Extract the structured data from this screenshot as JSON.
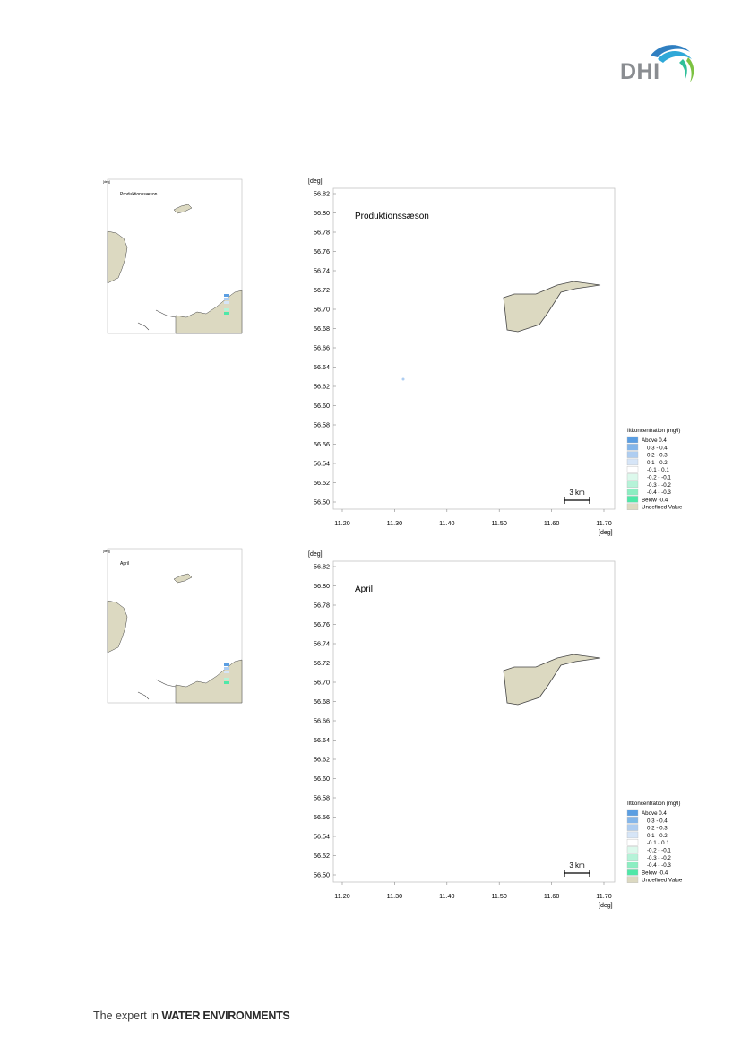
{
  "header": {
    "logo_text": "DHI"
  },
  "footer": {
    "tagline_prefix": "The expert in",
    "tagline_bold": "WATER ENVIRONMENTS"
  },
  "colors": {
    "land": "#dcd9c1",
    "coast": "#444444",
    "above": "#5b9ee2",
    "below": "#4fe8a8",
    "frame": "#bdbdbd"
  },
  "figures": [
    {
      "title": "Produktionssæson",
      "axis_unit": "[deg]",
      "y_ticks": [
        "56.82",
        "56.80",
        "56.78",
        "56.76",
        "56.74",
        "56.72",
        "56.70",
        "56.68",
        "56.66",
        "56.64",
        "56.62",
        "56.60",
        "56.58",
        "56.56",
        "56.54",
        "56.52",
        "56.50"
      ],
      "x_ticks": [
        "11.20",
        "11.30",
        "11.40",
        "11.50",
        "11.60",
        "11.70"
      ],
      "scale_bar": "3 km",
      "legend": {
        "title": "Iltkoncentration (mg/l)",
        "items": [
          {
            "label": "Above  0.4",
            "color": "#5b9ee2"
          },
          {
            "label": "0.3 -  0.4",
            "color": "#84b6ea"
          },
          {
            "label": "0.2 -  0.3",
            "color": "#aecdf1"
          },
          {
            "label": "0.1 -  0.2",
            "color": "#d6e5f7"
          },
          {
            "label": "-0.1 -  0.1",
            "color": "#ffffff"
          },
          {
            "label": "-0.2 - -0.1",
            "color": "#dcf9ec"
          },
          {
            "label": "-0.3 - -0.2",
            "color": "#b5f3d8"
          },
          {
            "label": "-0.4 - -0.3",
            "color": "#8ceec2"
          },
          {
            "label": "Below -0.4",
            "color": "#4fe8a8"
          },
          {
            "label": "Undefined Value",
            "color": "#dcd9c1"
          }
        ]
      }
    },
    {
      "title": "April",
      "axis_unit": "[deg]",
      "y_ticks": [
        "56.82",
        "56.80",
        "56.78",
        "56.76",
        "56.74",
        "56.72",
        "56.70",
        "56.68",
        "56.66",
        "56.64",
        "56.62",
        "56.60",
        "56.58",
        "56.56",
        "56.54",
        "56.52",
        "56.50"
      ],
      "x_ticks": [
        "11.20",
        "11.30",
        "11.40",
        "11.50",
        "11.60",
        "11.70"
      ],
      "scale_bar": "3 km",
      "legend": {
        "title": "Iltkoncentration (mg/l)",
        "items": [
          {
            "label": "Above  0.4",
            "color": "#5b9ee2"
          },
          {
            "label": "0.3 -  0.4",
            "color": "#84b6ea"
          },
          {
            "label": "0.2 -  0.3",
            "color": "#aecdf1"
          },
          {
            "label": "0.1 -  0.2",
            "color": "#d6e5f7"
          },
          {
            "label": "-0.1 -  0.1",
            "color": "#ffffff"
          },
          {
            "label": "-0.2 - -0.1",
            "color": "#dcf9ec"
          },
          {
            "label": "-0.3 - -0.2",
            "color": "#b5f3d8"
          },
          {
            "label": "-0.4 - -0.3",
            "color": "#8ceec2"
          },
          {
            "label": "Below -0.4",
            "color": "#4fe8a8"
          },
          {
            "label": "Undefined Value",
            "color": "#dcd9c1"
          }
        ]
      }
    }
  ]
}
